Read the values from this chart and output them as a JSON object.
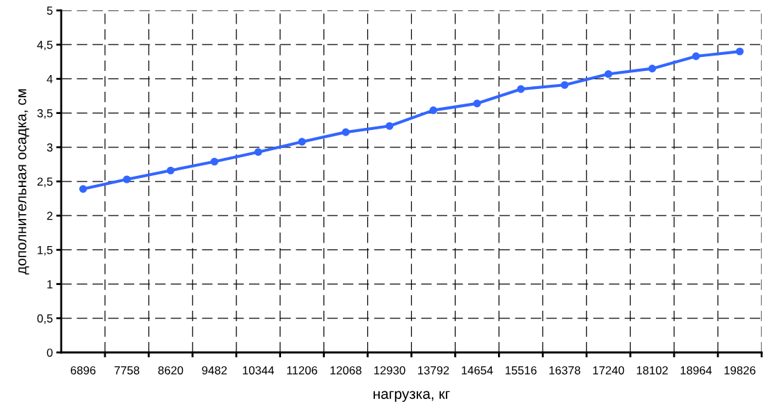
{
  "chart_data": {
    "type": "line",
    "xlabel": "нагрузка, кг",
    "ylabel": "дополнительная осадка, см",
    "categories": [
      "6896",
      "7758",
      "8620",
      "9482",
      "10344",
      "11206",
      "12068",
      "12930",
      "13792",
      "14654",
      "15516",
      "16378",
      "17240",
      "18102",
      "18964",
      "19826"
    ],
    "series": [
      {
        "color": "#3366ff",
        "values": [
          2.39,
          2.53,
          2.66,
          2.79,
          2.93,
          3.08,
          3.22,
          3.31,
          3.54,
          3.64,
          3.85,
          3.91,
          4.07,
          4.15,
          4.33,
          4.4
        ]
      }
    ],
    "ylim": [
      0,
      5
    ],
    "yticks": [
      0,
      {
        "value": 0.5,
        "label": "0,5"
      },
      1,
      {
        "value": 1.5,
        "label": "1,5"
      },
      2,
      {
        "value": 2.5,
        "label": "2,5"
      },
      3,
      {
        "value": 3.5,
        "label": "3,5"
      },
      4,
      {
        "value": 4.5,
        "label": "4,5"
      },
      5
    ],
    "grid": true,
    "marker": "circle",
    "line_style": "solid",
    "legend": false
  }
}
